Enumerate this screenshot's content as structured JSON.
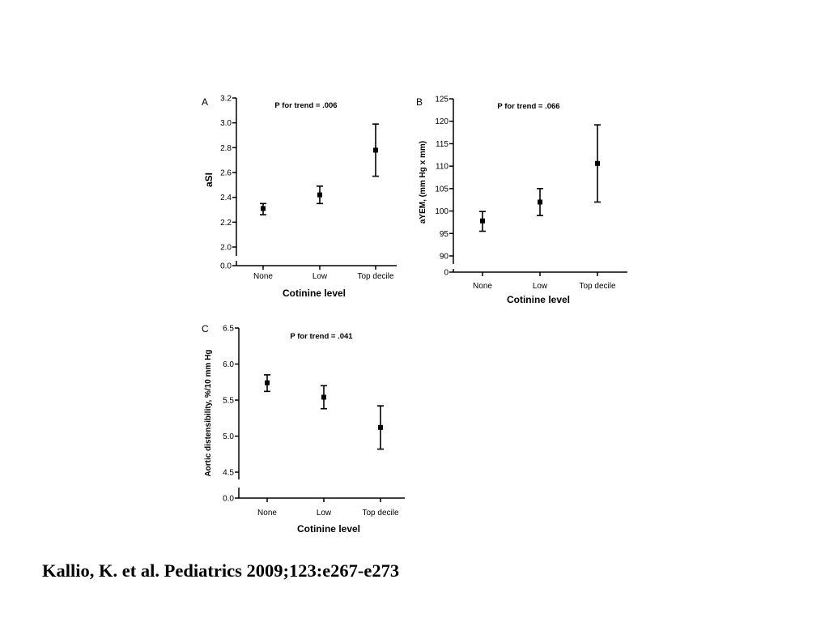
{
  "citation": "Kallio, K. et al. Pediatrics 2009;123:e267-e273",
  "chart_data": [
    {
      "type": "scatter",
      "panel": "A",
      "annotation": "P for trend = .006",
      "xlabel": "Cotinine level",
      "ylabel": "aSI",
      "categories": [
        "None",
        "Low",
        "Top decile"
      ],
      "values": [
        2.31,
        2.42,
        2.78
      ],
      "error_low": [
        2.26,
        2.35,
        2.57
      ],
      "error_high": [
        2.35,
        2.49,
        2.99
      ],
      "ylim": [
        2.0,
        3.2
      ],
      "yticks": [
        "3.2",
        "3.0",
        "2.8",
        "2.6",
        "2.4",
        "2.2",
        "2.0"
      ],
      "axis_break_zero": "0.0",
      "grid": false
    },
    {
      "type": "scatter",
      "panel": "B",
      "annotation": "P for trend = .066",
      "xlabel": "Cotinine level",
      "ylabel": "aYEM, (mm Hg x mm)",
      "categories": [
        "None",
        "Low",
        "Top decile"
      ],
      "values": [
        97.8,
        102.0,
        110.6
      ],
      "error_low": [
        95.5,
        99.0,
        102.0
      ],
      "error_high": [
        99.9,
        105.0,
        119.2
      ],
      "ylim": [
        90,
        125
      ],
      "yticks": [
        "125",
        "120",
        "115",
        "110",
        "105",
        "100",
        "95",
        "90"
      ],
      "axis_break_zero": "0",
      "grid": false
    },
    {
      "type": "scatter",
      "panel": "C",
      "annotation": "P for trend = .041",
      "xlabel": "Cotinine level",
      "ylabel": "Aortic distensibility, %/10 mm Hg",
      "categories": [
        "None",
        "Low",
        "Top decile"
      ],
      "values": [
        5.74,
        5.54,
        5.12
      ],
      "error_low": [
        5.62,
        5.38,
        4.82
      ],
      "error_high": [
        5.85,
        5.7,
        5.42
      ],
      "ylim": [
        4.5,
        6.5
      ],
      "yticks": [
        "6.5",
        "6.0",
        "5.5",
        "5.0",
        "4.5"
      ],
      "axis_break_zero": "0.0",
      "grid": false
    }
  ]
}
